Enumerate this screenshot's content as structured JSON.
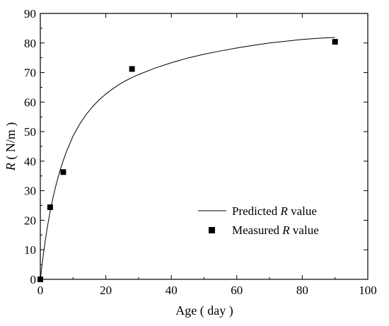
{
  "chart_data": {
    "type": "scatter",
    "xlabel": "Age ( day )",
    "ylabel": {
      "italic": "R",
      "rest": " ( N/m )"
    },
    "xlim": [
      0,
      100
    ],
    "ylim": [
      0,
      90
    ],
    "xticks": [
      0,
      20,
      40,
      60,
      80,
      100
    ],
    "yticks": [
      0,
      10,
      20,
      30,
      40,
      50,
      60,
      70,
      80,
      90
    ],
    "grid": false,
    "legend_position": "bottom-right",
    "series": [
      {
        "name": "Predicted R value",
        "legend_label": {
          "before": "Predicted ",
          "italic": "R",
          "after": " value"
        },
        "kind": "line",
        "color": "#000000",
        "x": [
          0,
          1,
          2,
          3,
          4,
          5,
          6,
          7,
          8,
          10,
          12,
          14,
          16,
          18,
          20,
          22,
          24,
          26,
          28,
          30,
          35,
          40,
          45,
          50,
          55,
          60,
          65,
          70,
          75,
          80,
          85,
          90
        ],
        "y": [
          0,
          9.1,
          16.7,
          23.0,
          28.3,
          32.8,
          36.8,
          40.2,
          43.3,
          48.5,
          52.5,
          55.8,
          58.5,
          60.8,
          62.7,
          64.4,
          65.9,
          67.2,
          68.3,
          69.3,
          71.5,
          73.3,
          74.9,
          76.2,
          77.3,
          78.3,
          79.2,
          80.0,
          80.6,
          81.2,
          81.6,
          81.9
        ]
      },
      {
        "name": "Measured R value",
        "legend_label": {
          "before": "Measured ",
          "italic": "R",
          "after": " value"
        },
        "kind": "scatter",
        "marker": "square",
        "color": "#000000",
        "x": [
          0,
          3,
          7,
          28,
          90
        ],
        "y": [
          0,
          24.4,
          36.3,
          71.2,
          80.4
        ]
      }
    ]
  }
}
